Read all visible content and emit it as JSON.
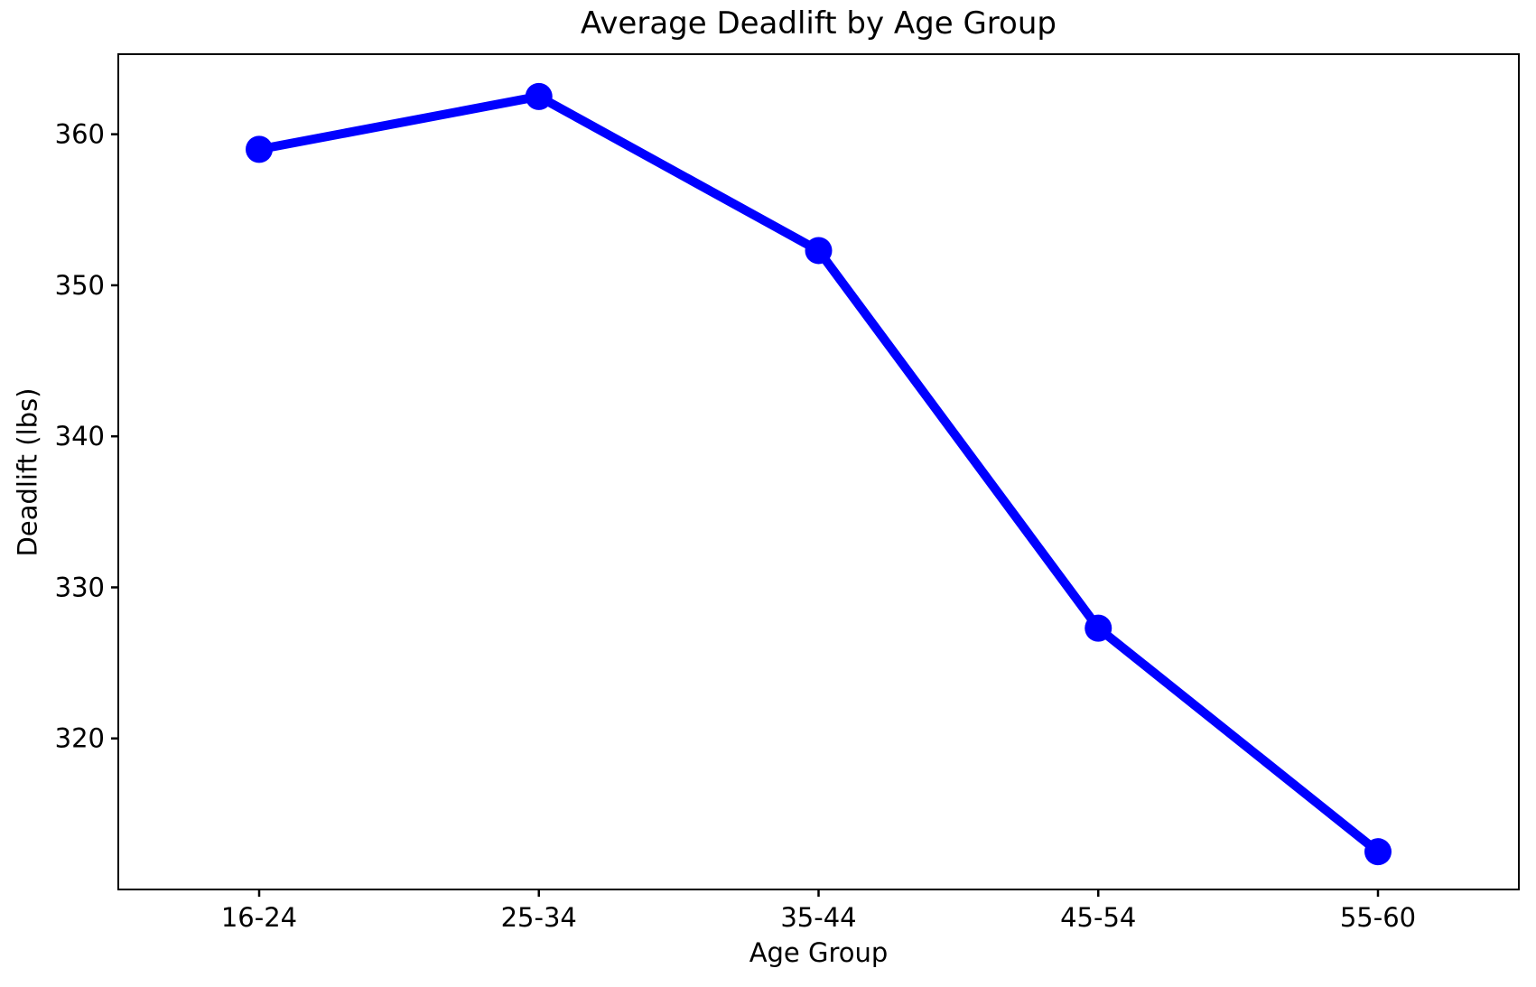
{
  "chart_data": {
    "type": "line",
    "title": "Average Deadlift by Age Group",
    "xlabel": "Age Group",
    "ylabel": "Deadlift (lbs)",
    "categories": [
      "16-24",
      "25-34",
      "35-44",
      "45-54",
      "55-60"
    ],
    "series": [
      {
        "name": "Average Deadlift",
        "values": [
          359.0,
          362.5,
          352.3,
          327.3,
          312.5
        ]
      }
    ],
    "ylim": [
      310,
      365.3
    ],
    "yticks": [
      320,
      330,
      340,
      350,
      360
    ],
    "grid": false,
    "legend": false,
    "line_color": "#0000FF",
    "marker": "circle",
    "marker_color": "#0000FF",
    "axis_color": "#000000",
    "background_color": "#FFFFFF"
  }
}
